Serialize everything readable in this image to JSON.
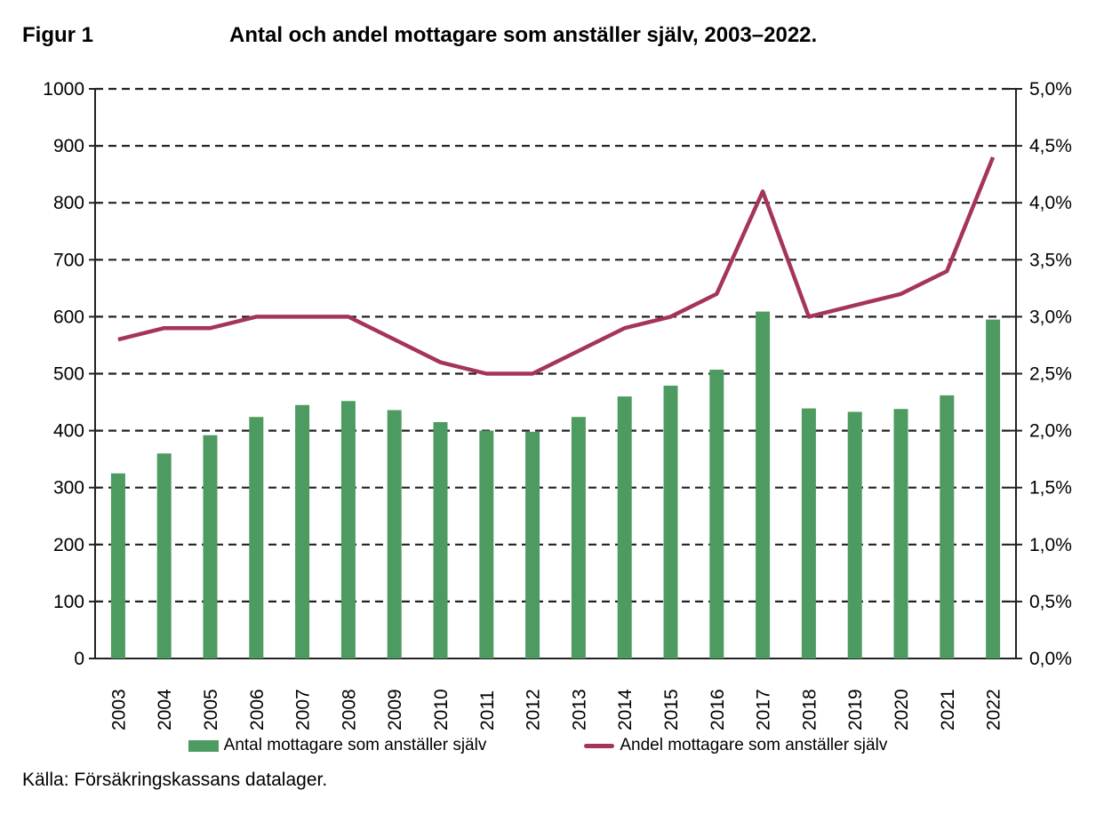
{
  "figure": {
    "label": "Figur 1",
    "title": "Antal och andel mottagare som anställer själv, 2003–2022.",
    "source": "Källa: Försäkringskassans datalager."
  },
  "legend": {
    "bar_label": "Antal mottagare som anställer själv",
    "line_label": "Andel mottagare som anställer själv"
  },
  "colors": {
    "bar": "#4E9B62",
    "line": "#A43559",
    "grid": "#222222",
    "axis": "#222222"
  },
  "chart_data": {
    "type": "bar+line dual-axis combo",
    "categories": [
      2003,
      2004,
      2005,
      2006,
      2007,
      2008,
      2009,
      2010,
      2011,
      2012,
      2013,
      2014,
      2015,
      2016,
      2017,
      2018,
      2019,
      2020,
      2021,
      2022
    ],
    "series": [
      {
        "name": "Antal mottagare som anställer själv",
        "type": "bar",
        "axis": "left",
        "values": [
          325,
          360,
          392,
          424,
          445,
          452,
          436,
          415,
          400,
          398,
          424,
          460,
          479,
          507,
          609,
          439,
          433,
          438,
          462,
          595
        ]
      },
      {
        "name": "Andel mottagare som anställer själv",
        "type": "line",
        "axis": "right",
        "values": [
          2.8,
          2.9,
          2.9,
          3.0,
          3.0,
          3.0,
          2.8,
          2.6,
          2.5,
          2.5,
          2.7,
          2.9,
          3.0,
          3.2,
          4.1,
          3.0,
          3.1,
          3.2,
          3.4,
          4.4
        ]
      }
    ],
    "left_axis": {
      "min": 0,
      "max": 1000,
      "step": 100,
      "ticks": [
        "1000",
        "900",
        "800",
        "700",
        "600",
        "500",
        "400",
        "300",
        "200",
        "100",
        "0"
      ]
    },
    "right_axis": {
      "min": 0,
      "max": 5,
      "step": 0.5,
      "ticks": [
        "5,0%",
        "4,5%",
        "4,0%",
        "3,5%",
        "3,0%",
        "2,5%",
        "2,0%",
        "1,5%",
        "1,0%",
        "0,5%",
        "0,0%"
      ]
    },
    "grid": "horizontal dashed",
    "legend_position": "bottom"
  }
}
